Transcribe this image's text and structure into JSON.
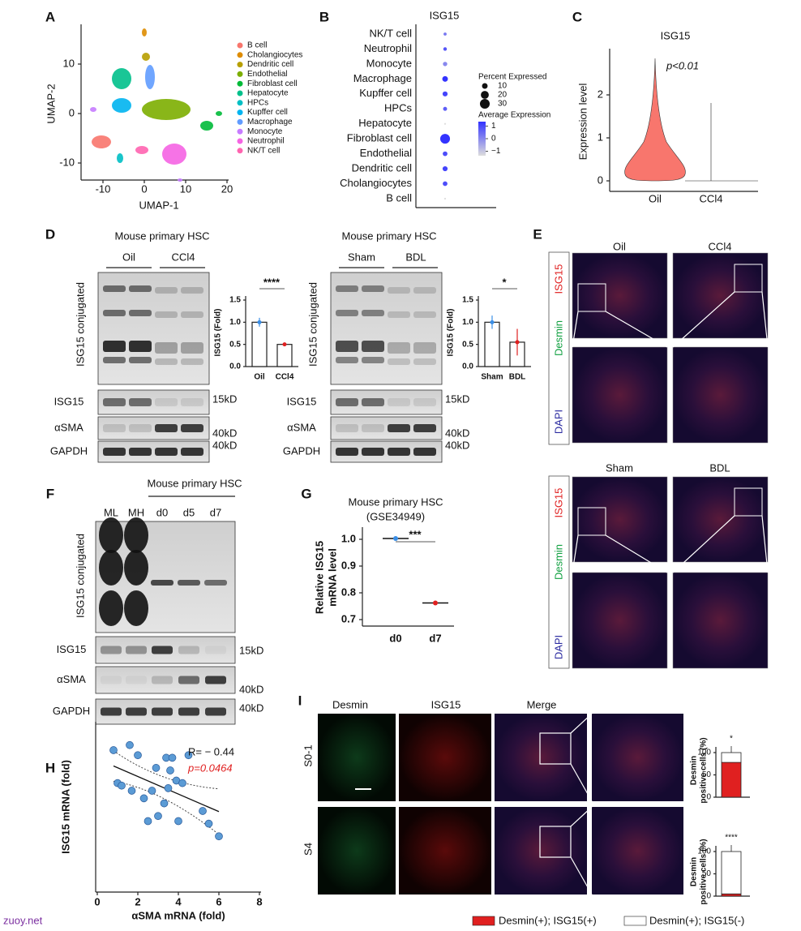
{
  "panel_a": {
    "label": "A",
    "x_label": "UMAP-1",
    "y_label": "UMAP-2",
    "xticks": [
      -10,
      0,
      10,
      20
    ],
    "yticks": [
      -10,
      0,
      10
    ],
    "legend": [
      {
        "name": "B cell",
        "color": "#f8766d"
      },
      {
        "name": "Cholangiocytes",
        "color": "#de8c00"
      },
      {
        "name": "Dendritic cell",
        "color": "#b79f00"
      },
      {
        "name": "Endothelial",
        "color": "#7cae00"
      },
      {
        "name": "Fibroblast cell",
        "color": "#00ba38"
      },
      {
        "name": "Hepatocyte",
        "color": "#00c08b"
      },
      {
        "name": "HPCs",
        "color": "#00bfc4"
      },
      {
        "name": "Kupffer cell",
        "color": "#00b4f0"
      },
      {
        "name": "Macrophage",
        "color": "#619cff"
      },
      {
        "name": "Monocyte",
        "color": "#c77cff"
      },
      {
        "name": "Neutrophil",
        "color": "#f564e3"
      },
      {
        "name": "NK/T cell",
        "color": "#ff64b0"
      }
    ]
  },
  "panel_b": {
    "label": "B",
    "title": "ISG15",
    "categories": [
      "NK/T cell",
      "Neutrophil",
      "Monocyte",
      "Macrophage",
      "Kupffer cell",
      "HPCs",
      "Hepatocyte",
      "Fibroblast cell",
      "Endothelial",
      "Dendritic cell",
      "Cholangiocytes",
      "B cell"
    ],
    "percent_expressed": [
      3,
      4,
      6,
      10,
      8,
      5,
      1,
      30,
      7,
      8,
      7,
      1
    ],
    "avg_expression": [
      0.2,
      0.6,
      0,
      1,
      0.8,
      0.5,
      -1,
      1.3,
      0.7,
      0.8,
      0.7,
      -1
    ],
    "size_legend_title": "Percent Expressed",
    "size_ticks": [
      10,
      20,
      30
    ],
    "color_legend_title": "Average Expression",
    "color_ticks": [
      1,
      0,
      {
        "value": -1,
        "label": "−1"
      }
    ]
  },
  "panel_c": {
    "label": "C",
    "title": "ISG15",
    "annotation": "p<0.01",
    "y_label": "Expression level",
    "yticks": [
      0,
      1,
      2
    ],
    "categories": [
      "Oil",
      "CCl4"
    ]
  },
  "panel_d": {
    "label": "D",
    "blots": [
      {
        "title": "Mouse primary HSC",
        "lanes": [
          "Oil",
          "CCl4"
        ],
        "conjugated_label": "ISG15 conjugated",
        "bands": [
          {
            "name": "ISG15",
            "size": "15kD"
          },
          {
            "name": "αSMA",
            "size": "40kD"
          },
          {
            "name": "GAPDH",
            "size": "40kD"
          }
        ],
        "bar": {
          "y_label": "ISG15 (Fold)",
          "ylim": [
            0,
            1.5
          ],
          "yticks": [
            {
              "value": 0,
              "label": "0.0"
            },
            0.5,
            {
              "value": 1,
              "label": "1.0"
            },
            1.5
          ],
          "categories": [
            "Oil",
            "CCl4"
          ],
          "values": [
            1.0,
            0.5
          ],
          "errors": [
            0.1,
            0.03
          ],
          "significance": "****",
          "colors": [
            "#3a8ee6",
            "#e02020"
          ]
        }
      },
      {
        "title": "Mouse primary HSC",
        "lanes": [
          "Sham",
          "BDL"
        ],
        "conjugated_label": "ISG15 conjugated",
        "bands": [
          {
            "name": "ISG15",
            "size": "15kD"
          },
          {
            "name": "αSMA",
            "size": "40kD"
          },
          {
            "name": "GAPDH",
            "size": "40kD"
          }
        ],
        "bar": {
          "y_label": "ISG15 (Fold)",
          "ylim": [
            0,
            1.5
          ],
          "yticks": [
            {
              "value": 0,
              "label": "0.0"
            },
            0.5,
            {
              "value": 1,
              "label": "1.0"
            },
            1.5
          ],
          "categories": [
            "Sham",
            "BDL"
          ],
          "values": [
            1.0,
            0.55
          ],
          "errors": [
            0.15,
            0.3
          ],
          "significance": "*",
          "colors": [
            "#3a8ee6",
            "#e02020"
          ]
        }
      }
    ]
  },
  "panel_e": {
    "label": "E",
    "groups": [
      {
        "conditions": [
          "Oil",
          "CCl4"
        ]
      },
      {
        "conditions": [
          "Sham",
          "BDL"
        ]
      }
    ],
    "stains": [
      "ISG15",
      "Desmin",
      "DAPI"
    ]
  },
  "panel_f": {
    "label": "F",
    "title": "Mouse primary HSC",
    "lanes": [
      "ML",
      "MH",
      "d0",
      "d5",
      "d7"
    ],
    "conjugated_label": "ISG15 conjugated",
    "bands": [
      {
        "name": "ISG15",
        "size": "15kD"
      },
      {
        "name": "αSMA",
        "size": "40kD"
      },
      {
        "name": "GAPDH",
        "size": "40kD"
      }
    ]
  },
  "panel_g": {
    "label": "G",
    "title": "Mouse primary HSC",
    "subtitle": "(GSE34949)",
    "y_label": [
      "Relative ISG15",
      "mRNA level"
    ],
    "categories": [
      "d0",
      "d7"
    ],
    "values": [
      1.003,
      0.762
    ],
    "ylim": [
      0.7,
      1.05
    ],
    "yticks": [
      0.7,
      0.8,
      0.9,
      {
        "value": 1,
        "label": "1.0"
      }
    ],
    "significance": "***",
    "colors": [
      "#3a8ee6",
      "#e02020"
    ]
  },
  "panel_h": {
    "label": "H",
    "x_label": "αSMA mRNA (fold)",
    "y_label": "ISG15 mRNA (fold)",
    "xlim": [
      0,
      8
    ],
    "xticks": [
      0,
      2,
      4,
      6,
      8
    ],
    "ylim": [
      0,
      3.2
    ],
    "x": [
      0.8,
      1.0,
      1.2,
      1.6,
      1.7,
      2.0,
      2.3,
      2.5,
      2.7,
      2.9,
      3.0,
      3.3,
      3.4,
      3.5,
      3.6,
      3.7,
      3.9,
      4.0,
      4.2,
      4.5,
      5.2,
      5.5,
      6.0
    ],
    "y": [
      2.8,
      2.15,
      2.1,
      2.9,
      2.0,
      2.7,
      1.85,
      1.4,
      2.0,
      2.45,
      1.5,
      1.75,
      2.65,
      2.05,
      2.4,
      2.65,
      2.2,
      1.4,
      2.15,
      2.7,
      1.6,
      1.35,
      1.1
    ],
    "color": "#5b9bd5",
    "r_label": "R= − 0.44",
    "p_label": "p=0.0464"
  },
  "panel_i": {
    "label": "I",
    "columns": [
      "Desmin",
      "ISG15",
      "Merge"
    ],
    "rows": [
      "S0-1",
      "S4"
    ],
    "bar": {
      "y_label": [
        "Desmin",
        "positive cells (%)"
      ],
      "ylim": [
        0,
        100
      ],
      "yticks": [
        0,
        50,
        100
      ],
      "groups": [
        {
          "pos": 78,
          "neg": 22,
          "significance": "*"
        },
        {
          "pos": 5,
          "neg": 95,
          "significance": "****"
        }
      ],
      "colors": [
        "#e02020",
        "#ffffff"
      ]
    },
    "legend": [
      "Desmin(+); ISG15(+)",
      "Desmin(+); ISG15(-)"
    ]
  },
  "footer": "zuoy.net"
}
